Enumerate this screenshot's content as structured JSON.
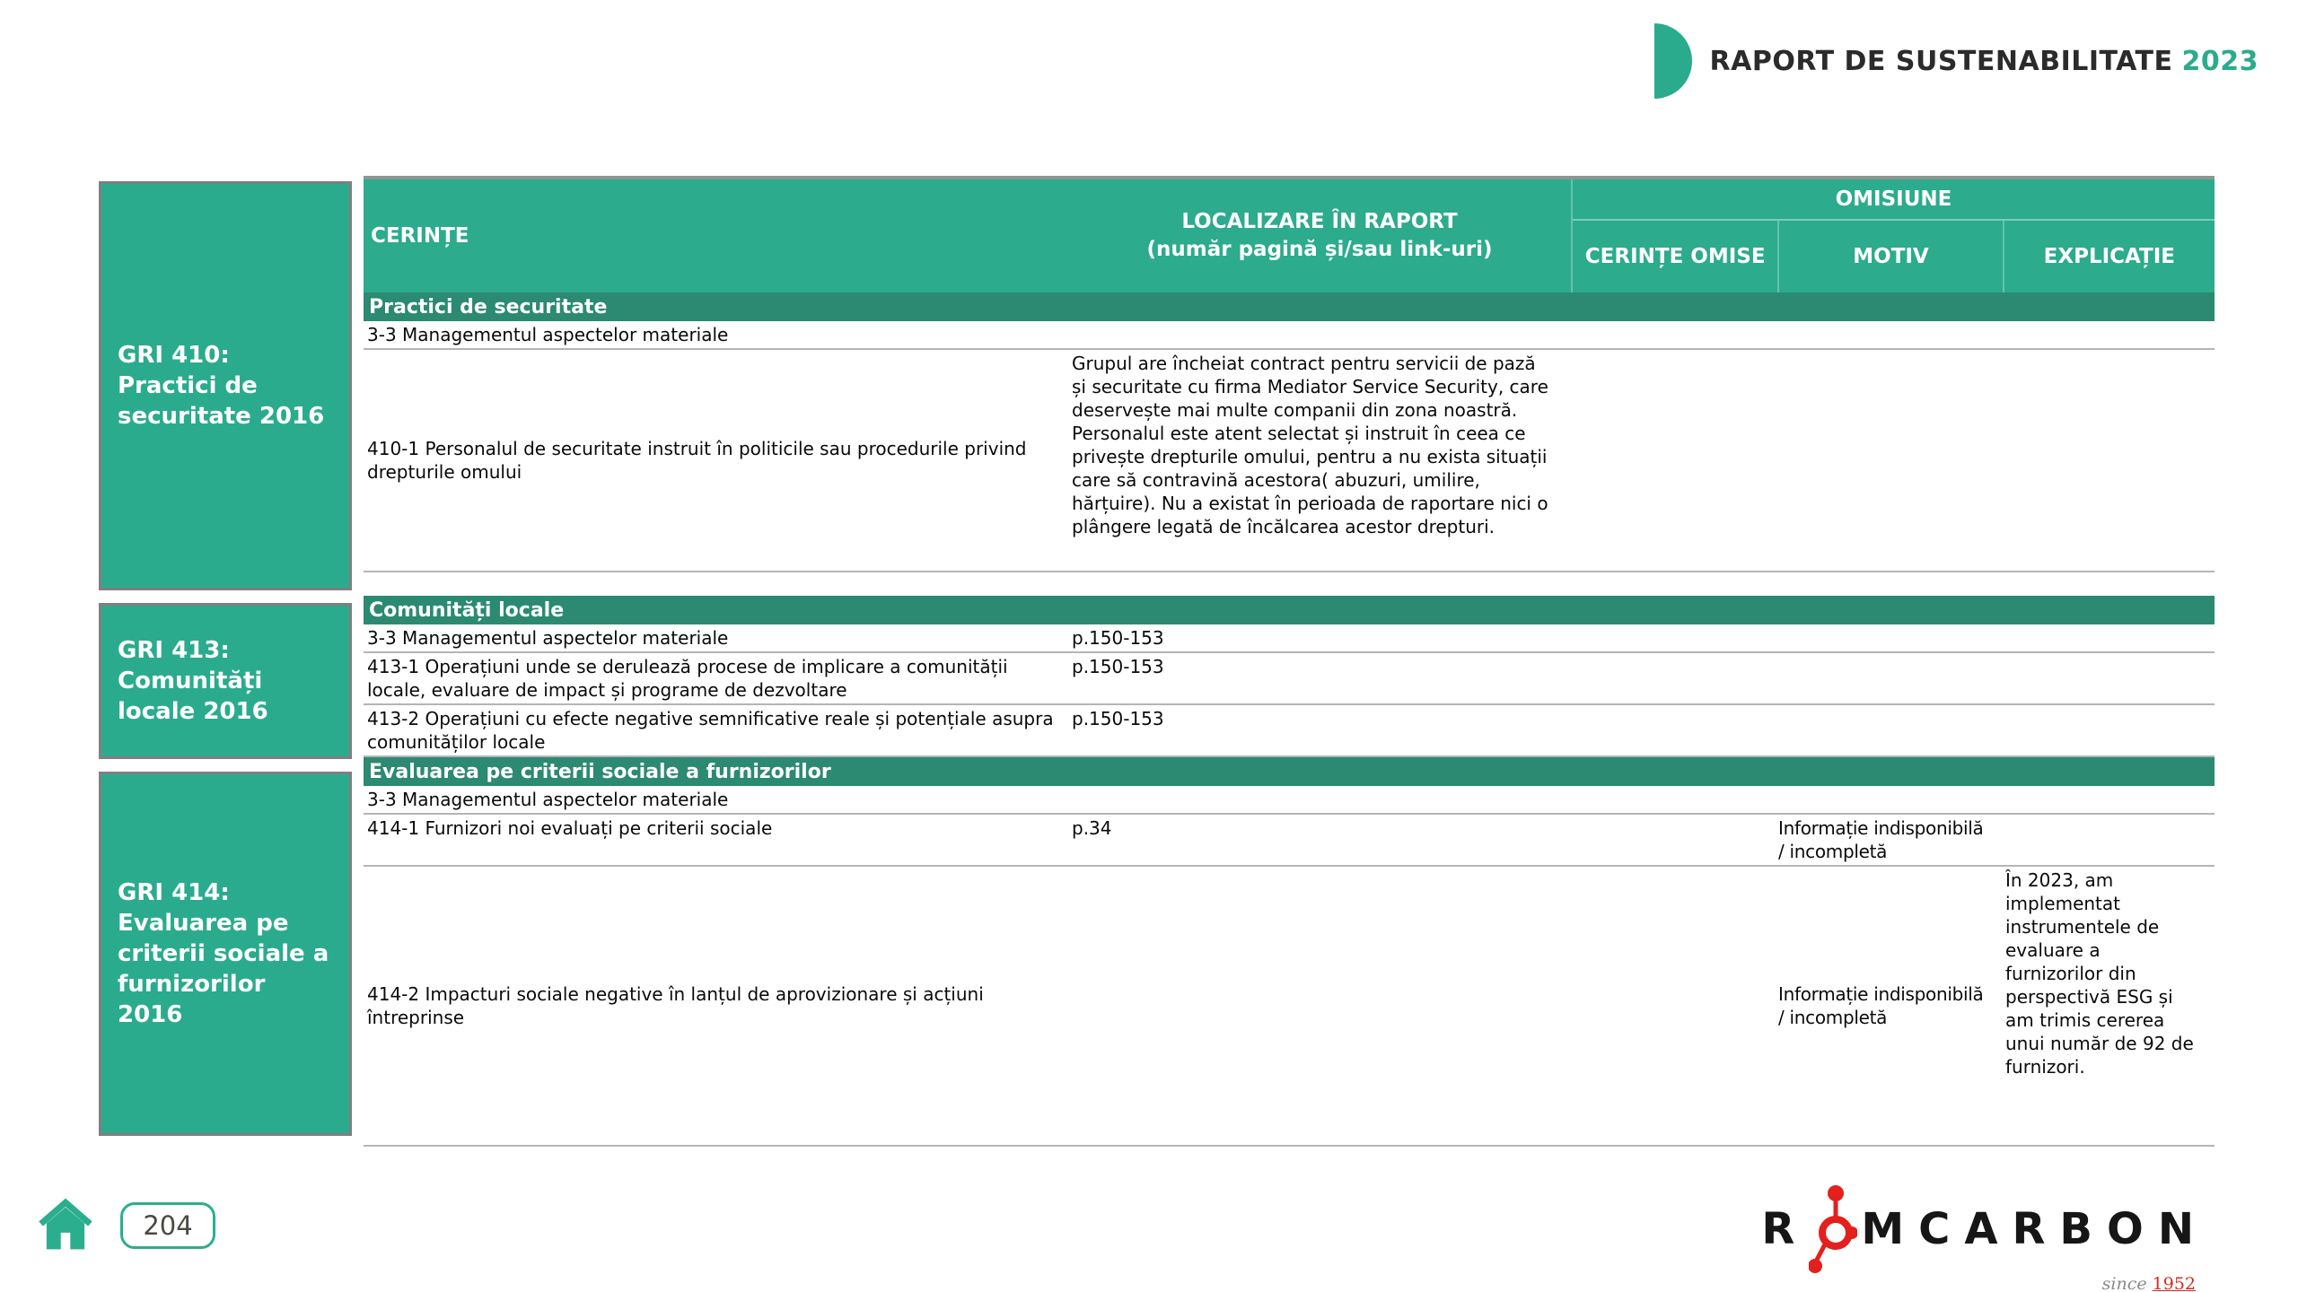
{
  "header": {
    "title": "RAPORT DE SUSTENABILITATE",
    "year": "2023"
  },
  "colors": {
    "teal": "#2CAB8D",
    "teal_dark": "#2B8A71",
    "logo_red": "#E3201B"
  },
  "sidebar": {
    "blocks": [
      {
        "label": "GRI 410: Practici de securitate 2016"
      },
      {
        "label": "GRI 413: Comunități locale 2016"
      },
      {
        "label": "GRI 414: Evaluarea pe criterii sociale a furnizorilor 2016"
      }
    ]
  },
  "table": {
    "header": {
      "cerinte": "CERINȚE",
      "localizare_line1": "LOCALIZARE ÎN RAPORT",
      "localizare_line2": "(număr pagină și/sau link-uri)",
      "omisiune": "OMISIUNE",
      "cerinte_omise": "CERINȚE OMISE",
      "motiv": "MOTIV",
      "explicatie": "EXPLICAȚIE"
    },
    "rows": [
      {
        "id": "band-practici",
        "kind": "section",
        "label": "Practici de securitate"
      },
      {
        "id": "r-33a",
        "kind": "item",
        "cerinte": "3-3 Managementul aspectelor materiale",
        "localizare": "",
        "cerinte_omise": "",
        "motiv": "",
        "explicatie": ""
      },
      {
        "id": "r-410-1",
        "kind": "item",
        "cerinte": "410-1 Personalul de securitate instruit în politicile sau procedurile privind drepturile omului",
        "localizare": "Grupul are încheiat contract pentru servicii de pază\nși securitate cu firma Mediator Service Security, care\ndeservește mai multe companii din zona noastră.\nPersonalul este atent selectat și instruit în ceea ce\nprivește drepturile omului, pentru a nu exista situații\ncare să contravină acestora( abuzuri, umilire,\nhărțuire). Nu a existat în perioada de raportare nici o\nplângere legată de încălcarea acestor drepturi.",
        "cerinte_omise": "",
        "motiv": "",
        "explicatie": ""
      },
      {
        "id": "spacer-1",
        "kind": "spacer"
      },
      {
        "id": "band-comunitati",
        "kind": "section",
        "label": "Comunități locale"
      },
      {
        "id": "r-33b",
        "kind": "item",
        "cerinte": "3-3 Managementul aspectelor materiale",
        "localizare": "p.150-153",
        "cerinte_omise": "",
        "motiv": "",
        "explicatie": ""
      },
      {
        "id": "r-413-1",
        "kind": "item",
        "cerinte": "413-1 Operațiuni unde se derulează procese de implicare a comunității locale, evaluare de impact și programe de dezvoltare",
        "localizare": "p.150-153",
        "cerinte_omise": "",
        "motiv": "",
        "explicatie": ""
      },
      {
        "id": "r-413-2",
        "kind": "item",
        "cerinte": "413-2 Operațiuni cu efecte negative semnificative reale și potențiale asupra comunităților locale",
        "localizare": "p.150-153",
        "cerinte_omise": "",
        "motiv": "",
        "explicatie": ""
      },
      {
        "id": "band-evaluarea",
        "kind": "section",
        "label": "Evaluarea pe criterii sociale a furnizorilor"
      },
      {
        "id": "r-33c",
        "kind": "item",
        "cerinte": "3-3 Managementul aspectelor materiale",
        "localizare": "",
        "cerinte_omise": "",
        "motiv": "",
        "explicatie": ""
      },
      {
        "id": "r-414-1",
        "kind": "item",
        "cerinte": "414-1 Furnizori noi evaluați pe criterii sociale",
        "localizare": "p.34",
        "cerinte_omise": "",
        "motiv": "Informație indisponibilă\n/ incompletă",
        "explicatie": ""
      },
      {
        "id": "r-414-2",
        "kind": "item",
        "cerinte": "414-2 Impacturi sociale negative în lanțul de aprovizionare și acțiuni întreprinse",
        "localizare": "",
        "cerinte_omise": "",
        "motiv": "Informație indisponibilă\n/ incompletă",
        "explicatie": "În 2023, am\nimplementat\ninstrumentele de\nevaluare a\nfurnizorilor din\nperspectivă ESG și\nam trimis cererea\nunui număr de 92 de\nfurnizori."
      }
    ]
  },
  "footer": {
    "page_number": "204"
  },
  "logo": {
    "prefix": "R",
    "suffix": "MCARBON",
    "since": "since",
    "year": "1952"
  }
}
